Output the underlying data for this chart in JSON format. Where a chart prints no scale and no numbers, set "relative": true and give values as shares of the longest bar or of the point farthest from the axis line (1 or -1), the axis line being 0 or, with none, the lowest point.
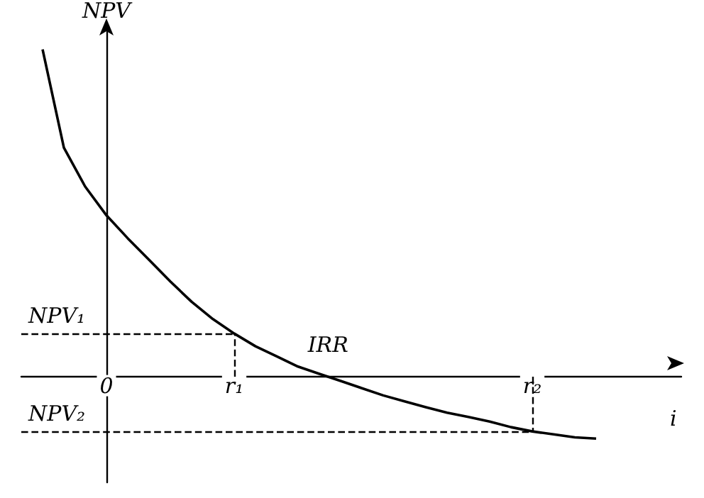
{
  "chart_data": {
    "type": "line",
    "xlabel": "i",
    "ylabel": "NPV",
    "relative": true,
    "color": "#000000",
    "marker": "none",
    "categories": [
      null,
      null,
      null,
      null,
      "0",
      null,
      null,
      null,
      null,
      null,
      "r₁",
      null,
      null,
      null,
      null,
      null,
      null,
      null,
      null,
      null,
      null,
      null,
      null,
      null,
      "r₂",
      null,
      null,
      null,
      null,
      null,
      null,
      null
    ],
    "values": [
      null,
      1,
      0.7,
      0.581,
      0.493,
      0.423,
      0.357,
      0.291,
      0.229,
      0.176,
      0.132,
      0.093,
      0.062,
      0.031,
      0.009,
      -0.013,
      -0.035,
      -0.057,
      -0.075,
      -0.093,
      -0.11,
      -0.123,
      -0.137,
      -0.154,
      -0.167,
      -0.176,
      -0.185,
      -0.189,
      null,
      null,
      null,
      null
    ],
    "ref_lines": [
      {
        "axis": "y",
        "value": 0.132,
        "label": "NPV₁",
        "line_style": "dashed",
        "color": "#000000"
      },
      {
        "axis": "y",
        "value": -0.167,
        "label": "NPV₂",
        "line_style": "dashed",
        "color": "#000000"
      },
      {
        "axis": "x",
        "value": "r₁",
        "line_style": "dashed",
        "color": "#000000"
      },
      {
        "axis": "x",
        "value": "r₂",
        "line_style": "dashed",
        "color": "#000000"
      }
    ],
    "annotations": [
      {
        "text": "IRR",
        "y": 0
      }
    ]
  }
}
